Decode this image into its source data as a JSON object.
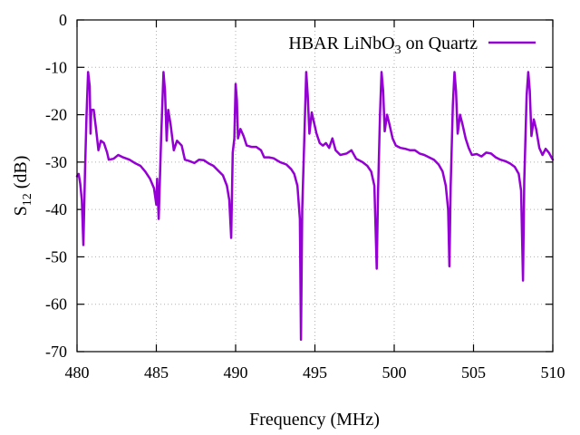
{
  "chart_data": {
    "type": "line",
    "title": "",
    "xlabel": "Frequency (MHz)",
    "ylabel": {
      "main": "S",
      "sub": "12",
      "suffix": " (dB)"
    },
    "xlim": [
      480,
      510
    ],
    "ylim": [
      -70,
      0
    ],
    "xticks": [
      480,
      485,
      490,
      495,
      500,
      505,
      510
    ],
    "yticks": [
      0,
      -10,
      -20,
      -30,
      -40,
      -50,
      -60,
      -70
    ],
    "grid": true,
    "legend_position": "top-right",
    "series": [
      {
        "name": {
          "main": "HBAR LiNbO",
          "sub": "3",
          "suffix": " on Quartz"
        },
        "color": "#9400D3",
        "points": [
          [
            480.0,
            -33
          ],
          [
            480.1,
            -32.5
          ],
          [
            480.2,
            -34.5
          ],
          [
            480.3,
            -38
          ],
          [
            480.4,
            -47.5
          ],
          [
            480.5,
            -32
          ],
          [
            480.6,
            -20
          ],
          [
            480.7,
            -11
          ],
          [
            480.8,
            -14
          ],
          [
            480.85,
            -24
          ],
          [
            480.9,
            -19
          ],
          [
            481.05,
            -19
          ],
          [
            481.2,
            -23
          ],
          [
            481.35,
            -27.5
          ],
          [
            481.5,
            -25.5
          ],
          [
            481.7,
            -26
          ],
          [
            481.9,
            -28
          ],
          [
            482.0,
            -29.5
          ],
          [
            482.3,
            -29.3
          ],
          [
            482.6,
            -28.5
          ],
          [
            482.9,
            -29
          ],
          [
            483.3,
            -29.5
          ],
          [
            483.7,
            -30.3
          ],
          [
            484.0,
            -30.8
          ],
          [
            484.3,
            -32
          ],
          [
            484.6,
            -33.5
          ],
          [
            484.85,
            -35.5
          ],
          [
            485.0,
            -39
          ],
          [
            485.05,
            -33.5
          ],
          [
            485.15,
            -42
          ],
          [
            485.3,
            -25
          ],
          [
            485.45,
            -11
          ],
          [
            485.55,
            -15
          ],
          [
            485.65,
            -25.5
          ],
          [
            485.75,
            -19
          ],
          [
            485.9,
            -22
          ],
          [
            486.1,
            -27.5
          ],
          [
            486.3,
            -25.5
          ],
          [
            486.6,
            -26.5
          ],
          [
            486.8,
            -29.5
          ],
          [
            487.1,
            -29.8
          ],
          [
            487.4,
            -30.2
          ],
          [
            487.7,
            -29.5
          ],
          [
            488.0,
            -29.6
          ],
          [
            488.3,
            -30.3
          ],
          [
            488.6,
            -30.8
          ],
          [
            488.9,
            -31.8
          ],
          [
            489.2,
            -32.8
          ],
          [
            489.45,
            -35
          ],
          [
            489.6,
            -38
          ],
          [
            489.72,
            -46
          ],
          [
            489.82,
            -28
          ],
          [
            489.92,
            -25
          ],
          [
            490.0,
            -13.5
          ],
          [
            490.08,
            -17
          ],
          [
            490.15,
            -25
          ],
          [
            490.3,
            -23
          ],
          [
            490.5,
            -24.5
          ],
          [
            490.7,
            -26.5
          ],
          [
            491.0,
            -26.8
          ],
          [
            491.3,
            -26.8
          ],
          [
            491.6,
            -27.5
          ],
          [
            491.8,
            -29
          ],
          [
            492.1,
            -29
          ],
          [
            492.4,
            -29.2
          ],
          [
            492.8,
            -30
          ],
          [
            493.2,
            -30.5
          ],
          [
            493.5,
            -31.5
          ],
          [
            493.7,
            -32.5
          ],
          [
            493.9,
            -35
          ],
          [
            494.05,
            -42
          ],
          [
            494.12,
            -67.5
          ],
          [
            494.2,
            -40
          ],
          [
            494.35,
            -23
          ],
          [
            494.45,
            -11
          ],
          [
            494.55,
            -16
          ],
          [
            494.65,
            -24
          ],
          [
            494.8,
            -19.5
          ],
          [
            494.9,
            -21
          ],
          [
            495.1,
            -24
          ],
          [
            495.3,
            -26
          ],
          [
            495.5,
            -26.5
          ],
          [
            495.7,
            -26
          ],
          [
            495.9,
            -27
          ],
          [
            496.1,
            -25
          ],
          [
            496.3,
            -27.5
          ],
          [
            496.6,
            -28.5
          ],
          [
            497.0,
            -28.2
          ],
          [
            497.3,
            -27.5
          ],
          [
            497.6,
            -29.3
          ],
          [
            498.0,
            -30
          ],
          [
            498.3,
            -30.8
          ],
          [
            498.55,
            -32
          ],
          [
            498.75,
            -35
          ],
          [
            498.9,
            -52.5
          ],
          [
            498.98,
            -36
          ],
          [
            499.1,
            -20
          ],
          [
            499.2,
            -11
          ],
          [
            499.3,
            -15
          ],
          [
            499.4,
            -23.5
          ],
          [
            499.55,
            -20
          ],
          [
            499.7,
            -22
          ],
          [
            499.9,
            -25
          ],
          [
            500.1,
            -26.5
          ],
          [
            500.4,
            -27
          ],
          [
            500.7,
            -27.2
          ],
          [
            501.0,
            -27.5
          ],
          [
            501.3,
            -27.5
          ],
          [
            501.6,
            -28.2
          ],
          [
            501.9,
            -28.5
          ],
          [
            502.2,
            -29
          ],
          [
            502.5,
            -29.5
          ],
          [
            502.8,
            -30.5
          ],
          [
            503.05,
            -32
          ],
          [
            503.25,
            -35
          ],
          [
            503.4,
            -40
          ],
          [
            503.48,
            -52
          ],
          [
            503.56,
            -35
          ],
          [
            503.7,
            -18
          ],
          [
            503.8,
            -11
          ],
          [
            503.9,
            -15
          ],
          [
            504.0,
            -24
          ],
          [
            504.15,
            -20
          ],
          [
            504.3,
            -22
          ],
          [
            504.5,
            -25
          ],
          [
            504.7,
            -27
          ],
          [
            504.9,
            -28.5
          ],
          [
            505.2,
            -28.3
          ],
          [
            505.5,
            -28.8
          ],
          [
            505.8,
            -28
          ],
          [
            506.1,
            -28.2
          ],
          [
            506.4,
            -29
          ],
          [
            506.7,
            -29.5
          ],
          [
            507.0,
            -29.8
          ],
          [
            507.3,
            -30.3
          ],
          [
            507.6,
            -31
          ],
          [
            507.85,
            -32.5
          ],
          [
            508.0,
            -36
          ],
          [
            508.12,
            -55
          ],
          [
            508.2,
            -34
          ],
          [
            508.35,
            -16
          ],
          [
            508.45,
            -11
          ],
          [
            508.55,
            -15
          ],
          [
            508.65,
            -24.5
          ],
          [
            508.8,
            -21
          ],
          [
            508.95,
            -23
          ],
          [
            509.15,
            -27
          ],
          [
            509.35,
            -28.5
          ],
          [
            509.55,
            -27.2
          ],
          [
            509.75,
            -28
          ],
          [
            510.0,
            -29.5
          ]
        ]
      }
    ]
  }
}
